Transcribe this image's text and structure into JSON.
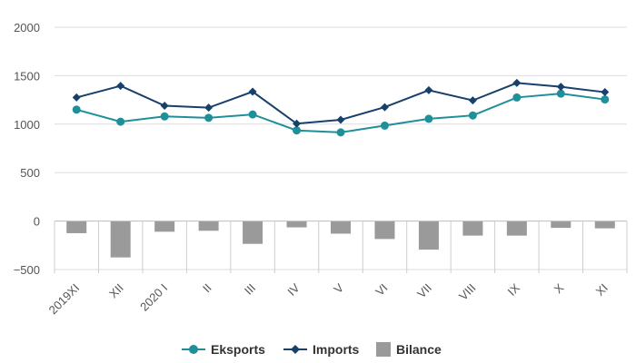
{
  "chart_data": {
    "type": "line",
    "categories": [
      "2019XI",
      "XII",
      "2020 I",
      "II",
      "III",
      "IV",
      "V",
      "VI",
      "VII",
      "VIII",
      "IX",
      "X",
      "XI"
    ],
    "series": [
      {
        "name": "Eksports",
        "kind": "line",
        "marker": "circle",
        "color": "#1f8f9a",
        "values": [
          1150,
          1025,
          1080,
          1065,
          1100,
          935,
          915,
          985,
          1055,
          1090,
          1275,
          1315,
          1255
        ]
      },
      {
        "name": "Imports",
        "kind": "line",
        "marker": "diamond",
        "color": "#17406b",
        "values": [
          1275,
          1395,
          1190,
          1170,
          1335,
          1005,
          1045,
          1175,
          1350,
          1245,
          1425,
          1385,
          1330
        ]
      },
      {
        "name": "Bilance",
        "kind": "bar",
        "color": "#9a9a9a",
        "values": [
          -125,
          -375,
          -110,
          -100,
          -235,
          -65,
          -130,
          -185,
          -295,
          -150,
          -150,
          -70,
          -75
        ]
      }
    ],
    "yticks": [
      2000,
      1500,
      1000,
      500,
      0,
      -500
    ],
    "ytick_labels": [
      "2000",
      "1500",
      "1000",
      "500",
      "0",
      "−500"
    ],
    "ylim": [
      -500,
      2000
    ],
    "grid": true,
    "legend_position": "bottom",
    "title": "",
    "xlabel": "",
    "ylabel": ""
  }
}
